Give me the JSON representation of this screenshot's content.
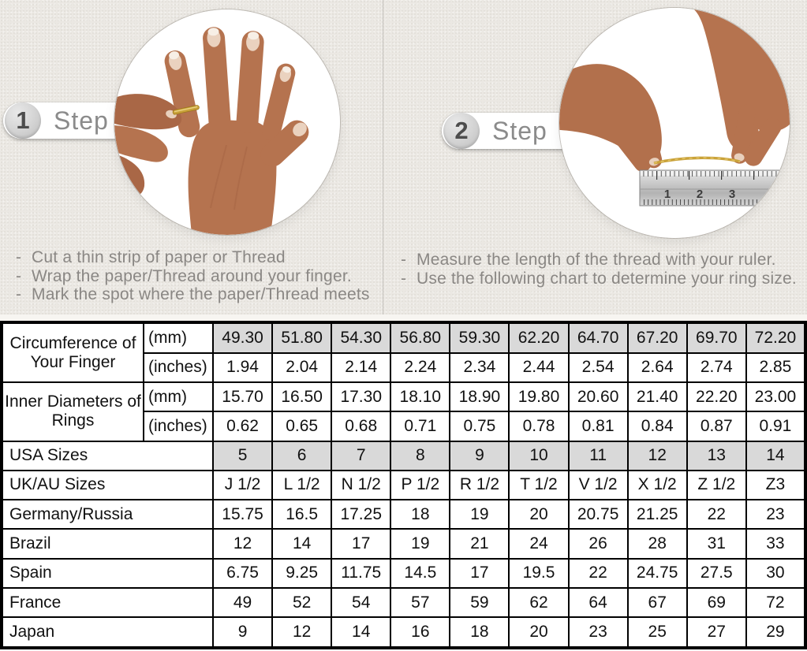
{
  "page": {
    "background_color": "#ebe8e3",
    "divider_color": "#c3c0bb",
    "accent_gold": "#c9a23a",
    "table_highlight_color": "#d9d9d9",
    "bullet_char": "-"
  },
  "steps": [
    {
      "number": "1",
      "label": "Step",
      "image": "hand-with-thread-wrapped-around-ring-finger",
      "instructions": [
        "Cut a thin strip of paper or Thread",
        "Wrap the paper/Thread around your finger.",
        "Mark the spot where the paper/Thread meets"
      ]
    },
    {
      "number": "2",
      "label": "Step",
      "image": "hands-measuring-thread-length-with-steel-ruler",
      "instructions": [
        "Measure the length of the thread with your ruler.",
        "Use the following chart to determine your ring size."
      ]
    }
  ],
  "ruler_numbers": [
    "1",
    "2",
    "3"
  ],
  "table": {
    "rows": [
      {
        "label": "Circumference of Your Finger",
        "unit": "(mm)",
        "values": [
          "49.30",
          "51.80",
          "54.30",
          "56.80",
          "59.30",
          "62.20",
          "64.70",
          "67.20",
          "69.70",
          "72.20"
        ],
        "highlight": true
      },
      {
        "unit": "(inches)",
        "values": [
          "1.94",
          "2.04",
          "2.14",
          "2.24",
          "2.34",
          "2.44",
          "2.54",
          "2.64",
          "2.74",
          "2.85"
        ],
        "highlight": false
      },
      {
        "label": "Inner Diameters of Rings",
        "unit": "(mm)",
        "values": [
          "15.70",
          "16.50",
          "17.30",
          "18.10",
          "18.90",
          "19.80",
          "20.60",
          "21.40",
          "22.20",
          "23.00"
        ],
        "highlight": false
      },
      {
        "unit": "(inches)",
        "values": [
          "0.62",
          "0.65",
          "0.68",
          "0.71",
          "0.75",
          "0.78",
          "0.81",
          "0.84",
          "0.87",
          "0.91"
        ],
        "highlight": false
      },
      {
        "label": "USA Sizes",
        "values": [
          "5",
          "6",
          "7",
          "8",
          "9",
          "10",
          "11",
          "12",
          "13",
          "14"
        ],
        "highlight": true
      },
      {
        "label": "UK/AU Sizes",
        "values": [
          "J 1/2",
          "L 1/2",
          "N 1/2",
          "P 1/2",
          "R 1/2",
          "T 1/2",
          "V 1/2",
          "X 1/2",
          "Z 1/2",
          "Z3"
        ],
        "highlight": false
      },
      {
        "label": "Germany/Russia",
        "values": [
          "15.75",
          "16.5",
          "17.25",
          "18",
          "19",
          "20",
          "20.75",
          "21.25",
          "22",
          "23"
        ],
        "highlight": false
      },
      {
        "label": "Brazil",
        "values": [
          "12",
          "14",
          "17",
          "19",
          "21",
          "24",
          "26",
          "28",
          "31",
          "33"
        ],
        "highlight": false
      },
      {
        "label": "Spain",
        "values": [
          "6.75",
          "9.25",
          "11.75",
          "14.5",
          "17",
          "19.5",
          "22",
          "24.75",
          "27.5",
          "30"
        ],
        "highlight": false
      },
      {
        "label": "France",
        "values": [
          "49",
          "52",
          "54",
          "57",
          "59",
          "62",
          "64",
          "67",
          "69",
          "72"
        ],
        "highlight": false
      },
      {
        "label": "Japan",
        "values": [
          "9",
          "12",
          "14",
          "16",
          "18",
          "20",
          "23",
          "25",
          "27",
          "29"
        ],
        "highlight": false
      }
    ]
  }
}
